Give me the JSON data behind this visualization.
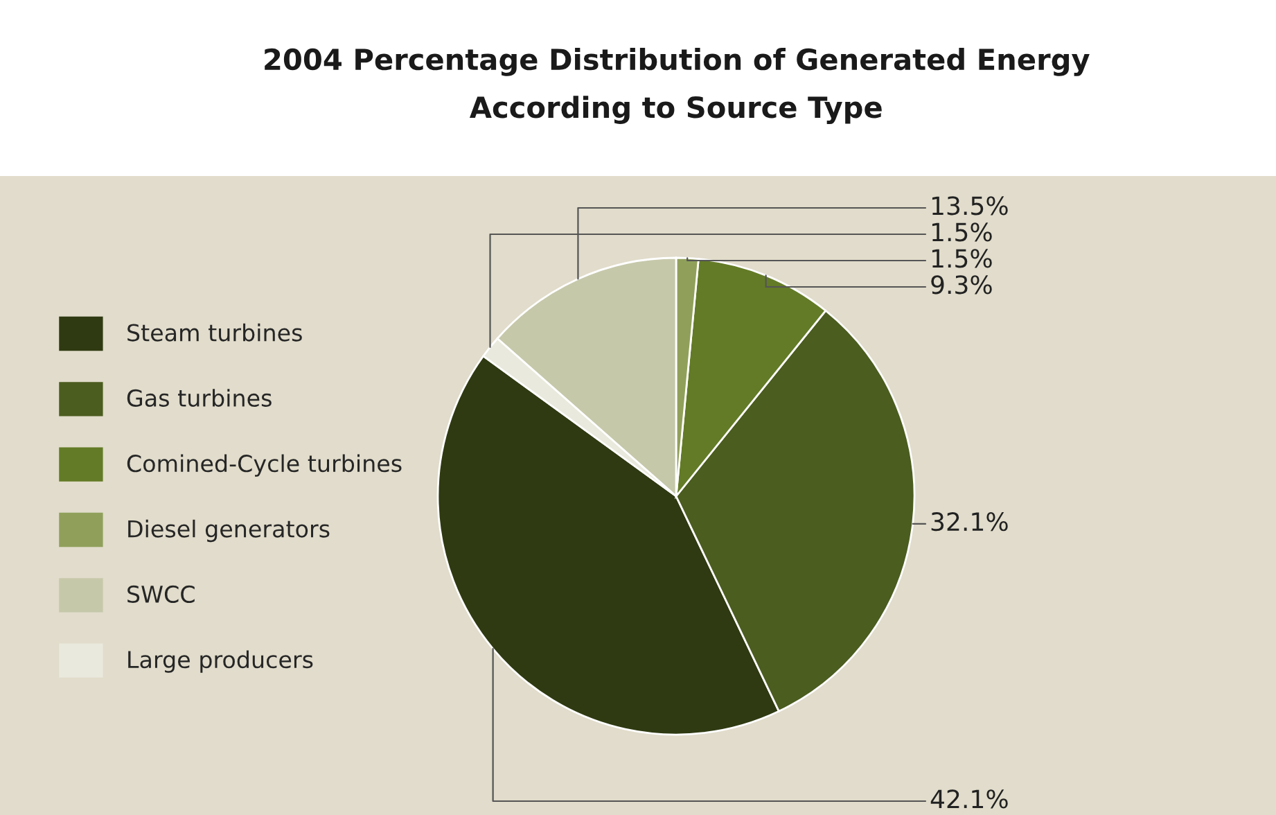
{
  "chart_data": {
    "type": "pie",
    "title": "2004 Percentage Distribution of Generated Energy\nAccording to Source Type",
    "categories": [
      "Steam turbines",
      "Gas turbines",
      "Comined-Cycle turbines",
      "Diesel generators",
      "SWCC",
      "Large producers"
    ],
    "values": [
      42.1,
      32.1,
      9.3,
      1.5,
      13.5,
      1.5
    ],
    "value_labels": [
      "42.1%",
      "32.1%",
      "9.3%",
      "1.5%",
      "13.5%",
      "1.5%"
    ],
    "colors": [
      "#2f3a12",
      "#4b5d1f",
      "#637b26",
      "#90a05a",
      "#c6c8aa",
      "#e9e9dd"
    ],
    "legend": "left"
  }
}
